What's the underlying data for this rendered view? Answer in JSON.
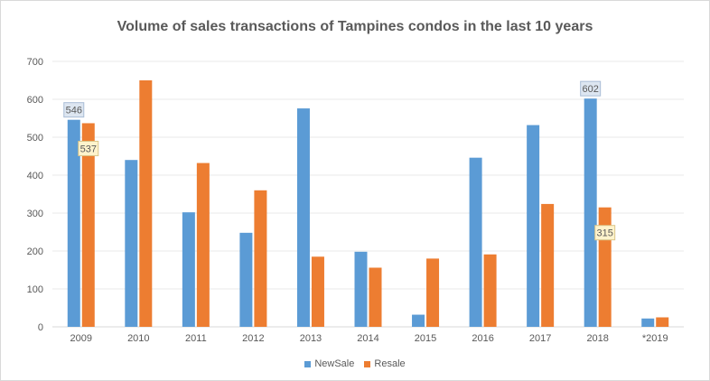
{
  "chart_data": {
    "type": "bar",
    "title": "Volume of sales transactions of Tampines condos in the last 10 years",
    "xlabel": "",
    "ylabel": "",
    "categories": [
      "2009",
      "2010",
      "2011",
      "2012",
      "2013",
      "2014",
      "2015",
      "2016",
      "2017",
      "2018",
      "*2019"
    ],
    "series": [
      {
        "name": "NewSale",
        "color": "#5b9bd5",
        "values": [
          546,
          440,
          302,
          248,
          576,
          198,
          32,
          446,
          532,
          602,
          22
        ]
      },
      {
        "name": "Resale",
        "color": "#ed7d31",
        "values": [
          537,
          650,
          432,
          360,
          185,
          156,
          180,
          191,
          324,
          315,
          25
        ]
      }
    ],
    "ylim": [
      0,
      700
    ],
    "yticks": [
      0,
      100,
      200,
      300,
      400,
      500,
      600,
      700
    ],
    "grid": true,
    "legend_position": "bottom",
    "data_labels": [
      {
        "series": "NewSale",
        "category": "2009",
        "value": "546"
      },
      {
        "series": "Resale",
        "category": "2009",
        "value": "537"
      },
      {
        "series": "NewSale",
        "category": "2018",
        "value": "602"
      },
      {
        "series": "Resale",
        "category": "2018",
        "value": "315"
      }
    ]
  }
}
